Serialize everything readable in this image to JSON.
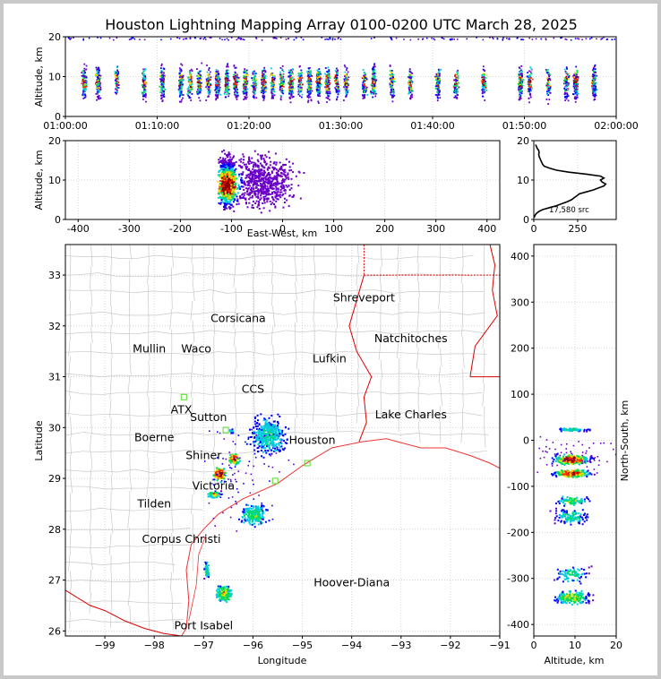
{
  "page": {
    "title": "Houston Lightning Mapping Array 0100-0200 UTC March 28, 2025"
  },
  "colors": {
    "density_scale": [
      "#6a00c8",
      "#0000ff",
      "#00ccdd",
      "#00dd55",
      "#eedd00",
      "#ff2200",
      "#8b0000",
      "#ffffff"
    ],
    "state_border": "#dd0000",
    "coast": "#ee3333",
    "county": "#c8c8c8",
    "grid": "#cccccc"
  },
  "chart_data": [
    {
      "id": "time_altitude",
      "type": "heatmap",
      "ylabel": "Altitude, km",
      "ylim": [
        0,
        20
      ],
      "yticks": [
        0,
        10,
        20
      ],
      "xlim": [
        "01:00:00",
        "02:00:00"
      ],
      "xticks": [
        "01:00:00",
        "01:10:00",
        "01:20:00",
        "01:30:00",
        "01:40:00",
        "01:50:00",
        "02:00:00"
      ],
      "activity_minutes": [
        2.0,
        3.5,
        5.5,
        8.5,
        10.5,
        12.5,
        13.5,
        14.5,
        15.5,
        16.5,
        17.5,
        18.5,
        19.5,
        20.5,
        21.5,
        22.5,
        23.5,
        24.5,
        25.5,
        26.5,
        27.5,
        28.5,
        29.5,
        30.5,
        32.5,
        33.5,
        35.5,
        37.5,
        40.5,
        42.5,
        45.5,
        49.5,
        50.5,
        52.5,
        54.5,
        55.5,
        57.5
      ]
    },
    {
      "id": "east_west_altitude",
      "type": "heatmap",
      "xlabel": "East-West, km",
      "ylabel": "Altitude, km",
      "xlim": [
        -425,
        425
      ],
      "ylim": [
        0,
        20
      ],
      "xticks": [
        -400,
        -300,
        -200,
        -100,
        0,
        100,
        200,
        300,
        400
      ],
      "yticks": [
        0,
        10,
        20
      ]
    },
    {
      "id": "altitude_histogram",
      "type": "line",
      "annotation": "17,580 src",
      "xlim": [
        0,
        470
      ],
      "ylim": [
        0,
        20
      ],
      "xticks": [
        0,
        250
      ],
      "yticks": [
        0,
        10,
        20
      ],
      "x": [
        2,
        6,
        14,
        28,
        50,
        90,
        130,
        160,
        190,
        215,
        230,
        245,
        260,
        300,
        340,
        370,
        400,
        410,
        390,
        380,
        400,
        380,
        300,
        200,
        130,
        90,
        60,
        50,
        45,
        40,
        35,
        30,
        28,
        30,
        28,
        20,
        15,
        10
      ],
      "y": [
        0.5,
        1,
        1.5,
        2,
        2.5,
        3,
        3.5,
        4,
        4.5,
        5,
        5.5,
        6,
        6.5,
        7,
        7.5,
        8,
        8.5,
        9,
        9.5,
        10,
        10.5,
        11,
        11.5,
        12,
        12.5,
        13,
        13.5,
        14,
        14.5,
        15,
        15.5,
        16,
        16.5,
        17,
        17.5,
        18,
        18.5,
        19
      ]
    },
    {
      "id": "plan_view_map",
      "type": "scatter",
      "xlabel": "Longitude",
      "ylabel": "Latitude",
      "xlim": [
        -99.8,
        -91.0
      ],
      "ylim": [
        25.9,
        33.6
      ],
      "xticks": [
        -99,
        -98,
        -97,
        -96,
        -95,
        -94,
        -93,
        -92,
        -91
      ],
      "yticks": [
        26,
        27,
        28,
        29,
        30,
        31,
        32,
        33
      ],
      "cities": [
        {
          "name": "Shreveport",
          "lon": -93.75,
          "lat": 32.55,
          "color": "#000000"
        },
        {
          "name": "Corsicana",
          "lon": -96.3,
          "lat": 32.15,
          "color": "#000000"
        },
        {
          "name": "Natchitoches",
          "lon": -92.8,
          "lat": 31.75,
          "color": "#000000"
        },
        {
          "name": "Mullin",
          "lon": -98.1,
          "lat": 31.55,
          "color": "#ee7733"
        },
        {
          "name": "Waco",
          "lon": -97.15,
          "lat": 31.55,
          "color": "#000000"
        },
        {
          "name": "Lufkin",
          "lon": -94.45,
          "lat": 31.35,
          "color": "#000000"
        },
        {
          "name": "CCS",
          "lon": -96.0,
          "lat": 30.75,
          "color": "#000000"
        },
        {
          "name": "Lake Charles",
          "lon": -92.8,
          "lat": 30.25,
          "color": "#000000"
        },
        {
          "name": "ATX",
          "lon": -97.45,
          "lat": 30.35,
          "color": "#ee7733"
        },
        {
          "name": "Sutton",
          "lon": -96.9,
          "lat": 30.2,
          "color": "#000000"
        },
        {
          "name": "Boerne",
          "lon": -98.0,
          "lat": 29.8,
          "color": "#000000"
        },
        {
          "name": "Houston",
          "lon": -94.8,
          "lat": 29.75,
          "color": "#ee9900"
        },
        {
          "name": "Shiner",
          "lon": -97.0,
          "lat": 29.45,
          "color": "#000000"
        },
        {
          "name": "Victoria",
          "lon": -96.8,
          "lat": 28.85,
          "color": "#000000"
        },
        {
          "name": "Tilden",
          "lon": -98.0,
          "lat": 28.5,
          "color": "#000000"
        },
        {
          "name": "Corpus Christi",
          "lon": -97.45,
          "lat": 27.8,
          "color": "#000000"
        },
        {
          "name": "Hoover-Diana",
          "lon": -94.0,
          "lat": 26.95,
          "color": "#0000ee"
        },
        {
          "name": "Port Isabel",
          "lon": -97.0,
          "lat": 26.1,
          "color": "#000000"
        }
      ],
      "stations": [
        {
          "lon": -97.4,
          "lat": 30.6
        },
        {
          "lon": -96.55,
          "lat": 29.95
        },
        {
          "lon": -94.9,
          "lat": 29.3
        },
        {
          "lon": -95.55,
          "lat": 28.95
        }
      ]
    },
    {
      "id": "altitude_north_south",
      "type": "heatmap",
      "xlabel": "Altitude, km",
      "ylabel": "North-South, km",
      "xlim": [
        0,
        20
      ],
      "ylim": [
        -425,
        425
      ],
      "xticks": [
        0,
        10,
        20
      ],
      "yticks": [
        -400,
        -300,
        -200,
        -100,
        0,
        100,
        200,
        300,
        400
      ]
    }
  ]
}
